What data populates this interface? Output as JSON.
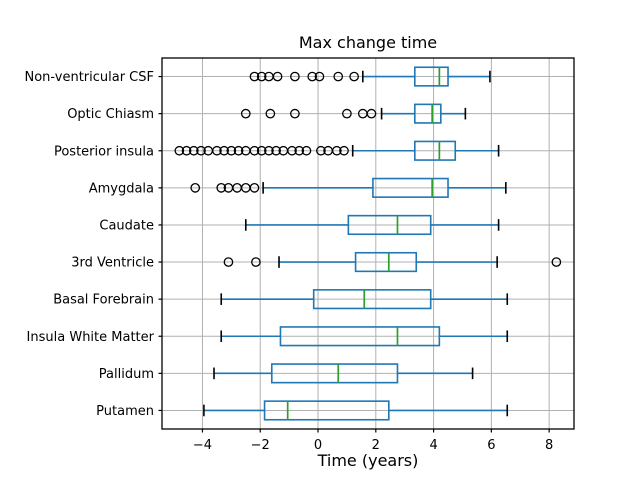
{
  "figure": {
    "title": "Max change time",
    "xlabel": "Time (years)"
  },
  "colors": {
    "box": "#1f77b4",
    "whisker": "#1f77b4",
    "median": "#2ca02c",
    "cap": "#000000",
    "flier_edge": "#000000",
    "grid": "#b0b0b0",
    "spine": "#000000",
    "background": "#ffffff"
  },
  "chart_data": {
    "type": "boxplot",
    "orientation": "horizontal",
    "title": "Max change time",
    "xlabel": "Time (years)",
    "ylabel": "",
    "grid": true,
    "xlim": [
      -5.4,
      8.86
    ],
    "xticks": [
      -4,
      -2,
      0,
      2,
      4,
      6,
      8
    ],
    "xtick_labels": [
      "−4",
      "−2",
      "0",
      "2",
      "4",
      "6",
      "8"
    ],
    "categories": [
      "Non-ventricular CSF",
      "Optic Chiasm",
      "Posterior insula",
      "Amygdala",
      "Caudate",
      "3rd Ventricle",
      "Basal Forebrain",
      "Insula White Matter",
      "Pallidum",
      "Putamen"
    ],
    "series": [
      {
        "name": "Non-ventricular CSF",
        "whislo": 1.55,
        "q1": 3.35,
        "med": 4.2,
        "q3": 4.5,
        "whishi": 5.95,
        "fliers": [
          -2.2,
          -1.95,
          -1.7,
          -1.4,
          -0.8,
          -0.2,
          0.05,
          0.7,
          1.25
        ]
      },
      {
        "name": "Optic Chiasm",
        "whislo": 2.2,
        "q1": 3.35,
        "med": 3.95,
        "q3": 4.25,
        "whishi": 5.1,
        "fliers": [
          -2.5,
          -1.65,
          -0.8,
          1.0,
          1.55,
          1.85
        ]
      },
      {
        "name": "Posterior insula",
        "whislo": 1.2,
        "q1": 3.35,
        "med": 4.2,
        "q3": 4.75,
        "whishi": 6.25,
        "fliers": [
          -4.8,
          -4.55,
          -4.3,
          -4.05,
          -3.8,
          -3.5,
          -3.25,
          -3.0,
          -2.75,
          -2.5,
          -2.2,
          -1.95,
          -1.7,
          -1.45,
          -1.2,
          -0.9,
          -0.65,
          -0.4,
          0.1,
          0.35,
          0.65,
          0.9
        ]
      },
      {
        "name": "Amygdala",
        "whislo": -1.9,
        "q1": 1.9,
        "med": 3.95,
        "q3": 4.5,
        "whishi": 6.5,
        "fliers": [
          -4.25,
          -3.35,
          -3.1,
          -2.8,
          -2.5,
          -2.2
        ]
      },
      {
        "name": "Caudate",
        "whislo": -2.5,
        "q1": 1.05,
        "med": 2.75,
        "q3": 3.9,
        "whishi": 6.25,
        "fliers": []
      },
      {
        "name": "3rd Ventricle",
        "whislo": -1.35,
        "q1": 1.3,
        "med": 2.45,
        "q3": 3.4,
        "whishi": 6.2,
        "fliers": [
          -3.1,
          -2.15,
          8.25
        ]
      },
      {
        "name": "Basal Forebrain",
        "whislo": -3.35,
        "q1": -0.15,
        "med": 1.6,
        "q3": 3.9,
        "whishi": 6.55,
        "fliers": []
      },
      {
        "name": "Insula White Matter",
        "whislo": -3.35,
        "q1": -1.3,
        "med": 2.75,
        "q3": 4.2,
        "whishi": 6.55,
        "fliers": []
      },
      {
        "name": "Pallidum",
        "whislo": -3.6,
        "q1": -1.6,
        "med": 0.7,
        "q3": 2.75,
        "whishi": 5.35,
        "fliers": []
      },
      {
        "name": "Putamen",
        "whislo": -3.95,
        "q1": -1.85,
        "med": -1.05,
        "q3": 2.45,
        "whishi": 6.55,
        "fliers": []
      }
    ]
  }
}
